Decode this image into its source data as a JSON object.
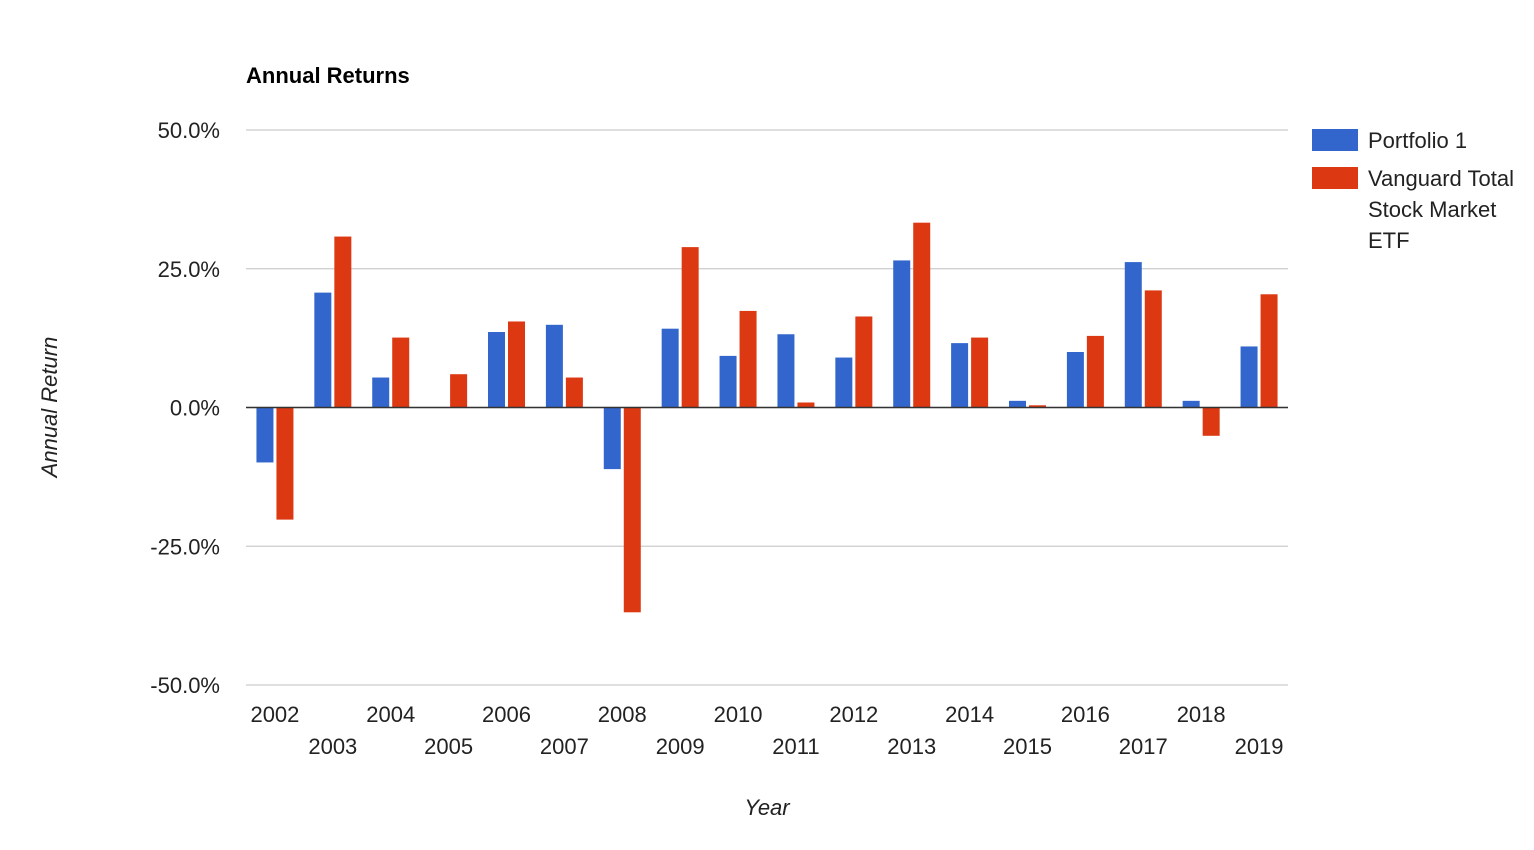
{
  "chart_data": {
    "type": "bar",
    "title": "Annual Returns",
    "xlabel": "Year",
    "ylabel": "Annual Return",
    "ylim": [
      -50,
      50
    ],
    "yticks": [
      "50.0%",
      "25.0%",
      "0.0%",
      "-25.0%",
      "-50.0%"
    ],
    "ytick_values": [
      50,
      25,
      0,
      -25,
      -50
    ],
    "grid": true,
    "legend_position": "right",
    "categories": [
      "2002",
      "2003",
      "2004",
      "2005",
      "2006",
      "2007",
      "2008",
      "2009",
      "2010",
      "2011",
      "2012",
      "2013",
      "2014",
      "2015",
      "2016",
      "2017",
      "2018",
      "2019"
    ],
    "series": [
      {
        "name": "Portfolio 1",
        "color": "#3366cc",
        "values": [
          -9.9,
          20.7,
          5.4,
          0.0,
          13.6,
          14.9,
          -11.1,
          14.2,
          9.3,
          13.2,
          9.0,
          26.5,
          11.6,
          1.2,
          10.0,
          26.2,
          1.2,
          11.0
        ]
      },
      {
        "name": "Vanguard Total Stock Market ETF",
        "color": "#dc3912",
        "values": [
          -20.2,
          30.8,
          12.6,
          6.0,
          15.5,
          5.4,
          -36.9,
          28.9,
          17.4,
          0.9,
          16.4,
          33.3,
          12.6,
          0.4,
          12.9,
          21.1,
          -5.1,
          20.4
        ]
      }
    ]
  }
}
